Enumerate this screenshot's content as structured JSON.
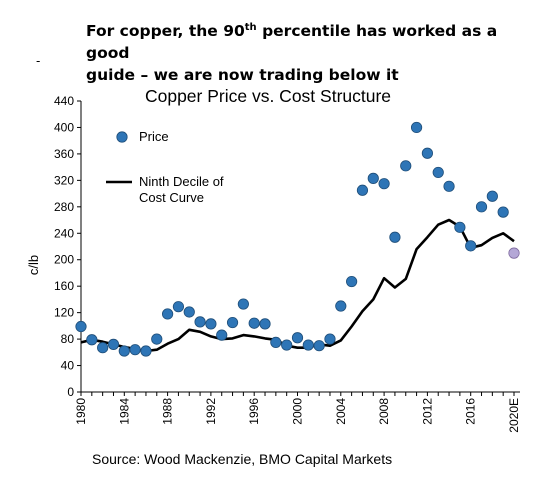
{
  "headline": {
    "line1_pre": "For copper, the 90",
    "line1_sup": "th",
    "line1_post": " percentile has worked as a good",
    "line2": "guide – we are now trading below it"
  },
  "stray_mark": "-",
  "source": "Source: Wood Mackenzie, BMO Capital Markets",
  "colors": {
    "price_dot": "#2E75B6",
    "price_dot_stroke": "#1F4E79",
    "forecast_dot": "#B4A7D6",
    "forecast_dot_stroke": "#7F6A9F",
    "decile_line": "#000000"
  },
  "chart_data": {
    "type": "line",
    "title": "Copper Price vs. Cost Structure",
    "ylabel": "c/lb",
    "xlabel": "",
    "ylim": [
      0,
      440
    ],
    "yticks": [
      0,
      40,
      80,
      120,
      160,
      200,
      240,
      280,
      320,
      360,
      400,
      440
    ],
    "x_tick_labels": [
      "1980",
      "1984",
      "1988",
      "1992",
      "1996",
      "2000",
      "2004",
      "2008",
      "2012",
      "2016",
      "2020E"
    ],
    "x_tick_years": [
      1980,
      1984,
      1988,
      1992,
      1996,
      2000,
      2004,
      2008,
      2012,
      2016,
      2020
    ],
    "xlim": [
      1980,
      2020
    ],
    "grid": false,
    "legend_position": "top-left",
    "series": [
      {
        "name": "Price",
        "type": "scatter",
        "x": [
          1980,
          1981,
          1982,
          1983,
          1984,
          1985,
          1986,
          1987,
          1988,
          1989,
          1990,
          1991,
          1992,
          1993,
          1994,
          1995,
          1996,
          1997,
          1998,
          1999,
          2000,
          2001,
          2002,
          2003,
          2004,
          2005,
          2006,
          2007,
          2008,
          2009,
          2010,
          2011,
          2012,
          2013,
          2014,
          2015,
          2016,
          2017,
          2018,
          2019
        ],
        "y": [
          99,
          79,
          67,
          72,
          62,
          64,
          62,
          80,
          118,
          129,
          121,
          106,
          103,
          86,
          105,
          133,
          104,
          103,
          75,
          71,
          82,
          71,
          70,
          80,
          130,
          167,
          305,
          323,
          315,
          234,
          342,
          400,
          361,
          332,
          311,
          249,
          221,
          280,
          296,
          272
        ]
      },
      {
        "name": "2020E",
        "type": "scatter",
        "x": [
          2020
        ],
        "y": [
          210
        ]
      },
      {
        "name": "Ninth Decile of Cost Curve",
        "type": "line",
        "x": [
          1980,
          1981,
          1982,
          1983,
          1984,
          1985,
          1986,
          1987,
          1988,
          1989,
          1990,
          1991,
          1992,
          1993,
          1994,
          1995,
          1996,
          1997,
          1998,
          1999,
          2000,
          2001,
          2002,
          2003,
          2004,
          2005,
          2006,
          2007,
          2008,
          2009,
          2010,
          2011,
          2012,
          2013,
          2014,
          2015,
          2016,
          2017,
          2018,
          2019,
          2020
        ],
        "y": [
          75,
          79,
          76,
          72,
          68,
          65,
          62,
          64,
          73,
          80,
          94,
          91,
          84,
          80,
          81,
          86,
          84,
          81,
          79,
          70,
          67,
          67,
          72,
          70,
          78,
          99,
          122,
          140,
          172,
          158,
          171,
          216,
          234,
          253,
          260,
          250,
          218,
          222,
          233,
          240,
          228
        ]
      }
    ],
    "legend": [
      {
        "label": "Price",
        "marker": "dot"
      },
      {
        "label": "Ninth Decile of\nCost Curve",
        "marker": "line"
      }
    ]
  }
}
